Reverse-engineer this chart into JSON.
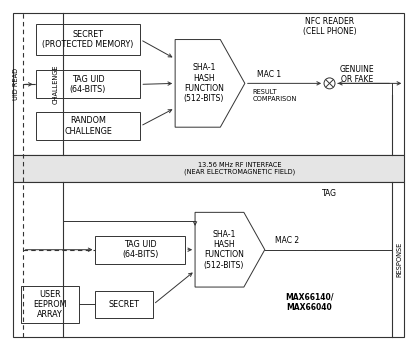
{
  "nfc_reader_label": "NFC READER\n(CELL PHONE)",
  "tag_label": "TAG",
  "rf_interface_label": "13.56 MHz RF INTERFACE\n(NEAR ELECTROMAGNETIC FIELD)",
  "uid_read_label": "UID READ",
  "challenge_label": "CHALLENGE",
  "response_label": "RESPONSE",
  "secret_top_label": "SECRET\n(PROTECTED MEMORY)",
  "tag_uid_top_label": "TAG UID\n(64-BITS)",
  "random_challenge_label": "RANDOM\nCHALLENGE",
  "sha1_top_label": "SHA-1\nHASH\nFUNCTION\n(512-BITS)",
  "mac1_label": "MAC 1",
  "result_comparison_label": "RESULT\nCOMPARISON",
  "genuine_or_fake_label": "GENUINE\nOR FAKE",
  "tag_uid_bot_label": "TAG UID\n(64-BITS)",
  "sha1_bot_label": "SHA-1\nHASH\nFUNCTION\n(512-BITS)",
  "mac2_label": "MAC 2",
  "user_eeprom_label": "USER\nEEPROM\nARRAY",
  "secret_bot_label": "SECRET",
  "maxim_label": "MAX66140/\nMAX66040",
  "line_color": "#333333",
  "box_color": "#ffffff",
  "fontsize": 5.8
}
